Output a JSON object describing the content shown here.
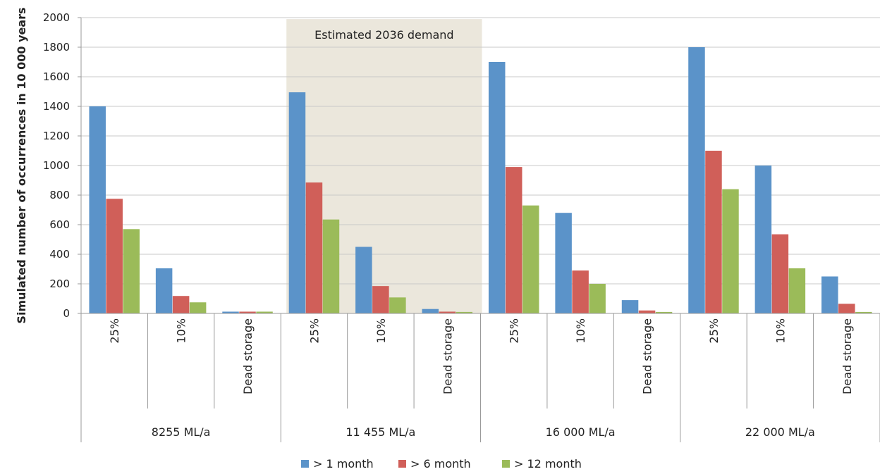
{
  "chart_data": {
    "type": "bar",
    "ylabel": "Simulated number of occurrences in 10 000 years",
    "ylim": [
      0,
      2000
    ],
    "yticks": [
      0,
      200,
      400,
      600,
      800,
      1000,
      1200,
      1400,
      1600,
      1800,
      2000
    ],
    "grid": true,
    "legend_position": "bottom",
    "annotation": "Estimated 2036 demand",
    "highlight_group": "11 455 ML/a",
    "groups": [
      "8255 ML/a",
      "11 455 ML/a",
      "16 000 ML/a",
      "22 000 ML/a"
    ],
    "sub_categories": [
      "25%",
      "10%",
      "Dead storage"
    ],
    "colors": [
      "#5b93c9",
      "#d05f59",
      "#9bbb59"
    ],
    "highlight_color": "#ebe7dc",
    "series": [
      {
        "name": "> 1 month",
        "values": [
          1400,
          305,
          12,
          1495,
          450,
          30,
          1700,
          680,
          90,
          1800,
          1000,
          250
        ]
      },
      {
        "name": "> 6 month",
        "values": [
          775,
          118,
          12,
          885,
          185,
          12,
          990,
          290,
          20,
          1100,
          535,
          65
        ]
      },
      {
        "name": "> 12 month",
        "values": [
          570,
          75,
          12,
          635,
          108,
          10,
          730,
          200,
          10,
          840,
          305,
          10
        ]
      }
    ]
  }
}
